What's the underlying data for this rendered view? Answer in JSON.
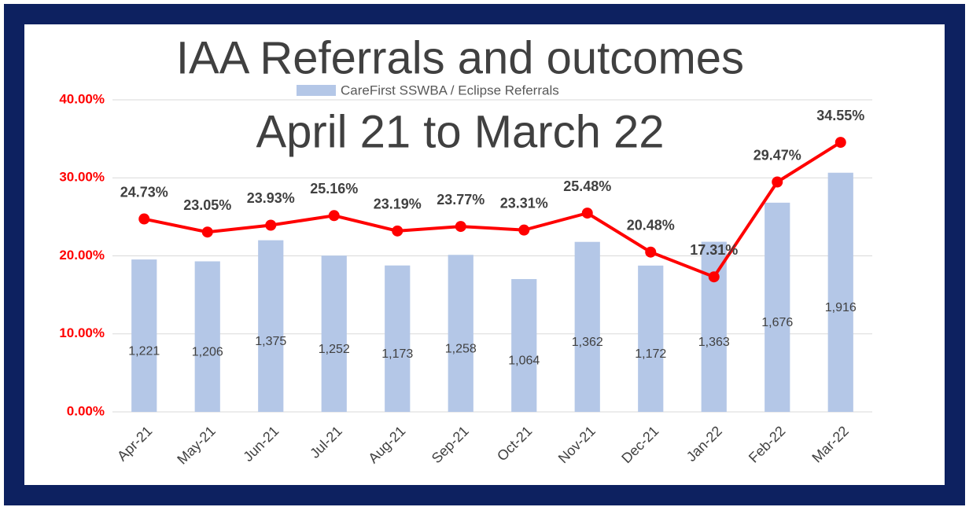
{
  "chart_data": {
    "type": "bar-line",
    "title": [
      "IAA Referrals and outcomes",
      "April 21 to March 22"
    ],
    "categories": [
      "Apr-21",
      "May-21",
      "Jun-21",
      "Jul-21",
      "Aug-21",
      "Sep-21",
      "Oct-21",
      "Nov-21",
      "Dec-21",
      "Jan-22",
      "Feb-22",
      "Mar-22"
    ],
    "series": [
      {
        "name": "CareFirst SSWBA / Eclipse Referrals",
        "type": "bar",
        "axis": "y2",
        "color": "#b4c7e7",
        "values": [
          1221,
          1206,
          1375,
          1252,
          1173,
          1258,
          1064,
          1362,
          1172,
          1363,
          1676,
          1916
        ],
        "value_labels": [
          "1,221",
          "1,206",
          "1,375",
          "1,252",
          "1,173",
          "1,258",
          "1,064",
          "1,362",
          "1,172",
          "1,363",
          "1,676",
          "1,916"
        ]
      },
      {
        "type": "line",
        "color": "#ff0000",
        "values": [
          24.73,
          23.05,
          23.93,
          25.16,
          23.19,
          23.77,
          23.31,
          25.48,
          20.48,
          17.31,
          29.47,
          34.55
        ],
        "value_labels": [
          "24.73%",
          "23.05%",
          "23.93%",
          "25.16%",
          "23.19%",
          "23.77%",
          "23.31%",
          "25.48%",
          "20.48%",
          "17.31%",
          "29.47%",
          "34.55%"
        ]
      }
    ],
    "ylim": [
      0,
      40
    ],
    "yticks": [
      {
        "value": 0,
        "label": "0.00%"
      },
      {
        "value": 10,
        "label": "10.00%"
      },
      {
        "value": 20,
        "label": "20.00%"
      },
      {
        "value": 30,
        "label": "30.00%"
      },
      {
        "value": 40,
        "label": "40.00%"
      }
    ],
    "y2lim": [
      0,
      2500
    ],
    "grid": true,
    "legend": "top"
  }
}
